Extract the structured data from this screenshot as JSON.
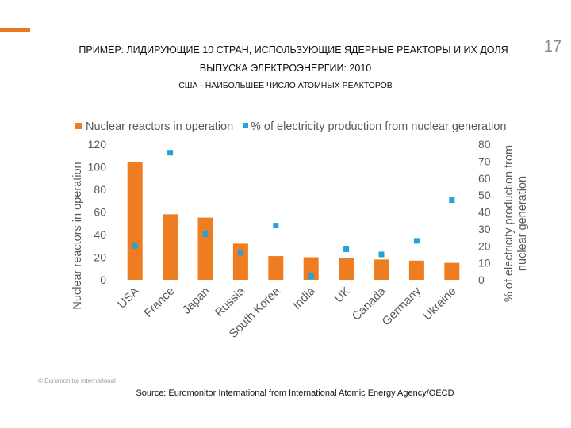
{
  "page": {
    "number": "17",
    "title_line1": "ПРИМЕР: ЛИДИРУЮЩИЕ 10 СТРАН, ИСПОЛЬЗУЮЩИЕ ЯДЕРНЫЕ РЕАКТОРЫ И ИХ ДОЛЯ",
    "title_line2": "ВЫПУСКА ЭЛЕКТРОЭНЕРГИИ: 2010",
    "subtitle": "США - НАИБОЛЬШЕЕ ЧИСЛО АТОМНЫХ РЕАКТОРОВ",
    "watermark": "© Euromonitor International",
    "source": "Source: Euromonitor International from International Atomic Energy Agency/OECD",
    "accent_color": "#e87722"
  },
  "chart_data": {
    "type": "bar",
    "categories": [
      "USA",
      "France",
      "Japan",
      "Russia",
      "South Korea",
      "India",
      "UK",
      "Canada",
      "Germany",
      "Ukraine"
    ],
    "series": [
      {
        "name": "Nuclear reactors in operation",
        "kind": "bar",
        "axis": "left",
        "color": "#ee7d22",
        "values": [
          104,
          58,
          55,
          32,
          21,
          20,
          19,
          18,
          17,
          15
        ]
      },
      {
        "name": "% of electricity production from nuclear generation",
        "kind": "scatter",
        "axis": "right",
        "color": "#1fa3d8",
        "values": [
          20,
          75,
          27,
          16,
          32,
          2,
          18,
          15,
          23,
          47
        ]
      }
    ],
    "y_left": {
      "label": "Nuclear reactors in operation",
      "min": 0,
      "max": 120,
      "ticks": [
        0,
        20,
        40,
        60,
        80,
        100,
        120
      ]
    },
    "y_right": {
      "label_line1": "% of electricity production from",
      "label_line2": "nuclear generation",
      "min": 0,
      "max": 80,
      "ticks": [
        0,
        10,
        20,
        30,
        40,
        50,
        60,
        70,
        80
      ]
    },
    "grid": false,
    "legend_position": "top"
  }
}
